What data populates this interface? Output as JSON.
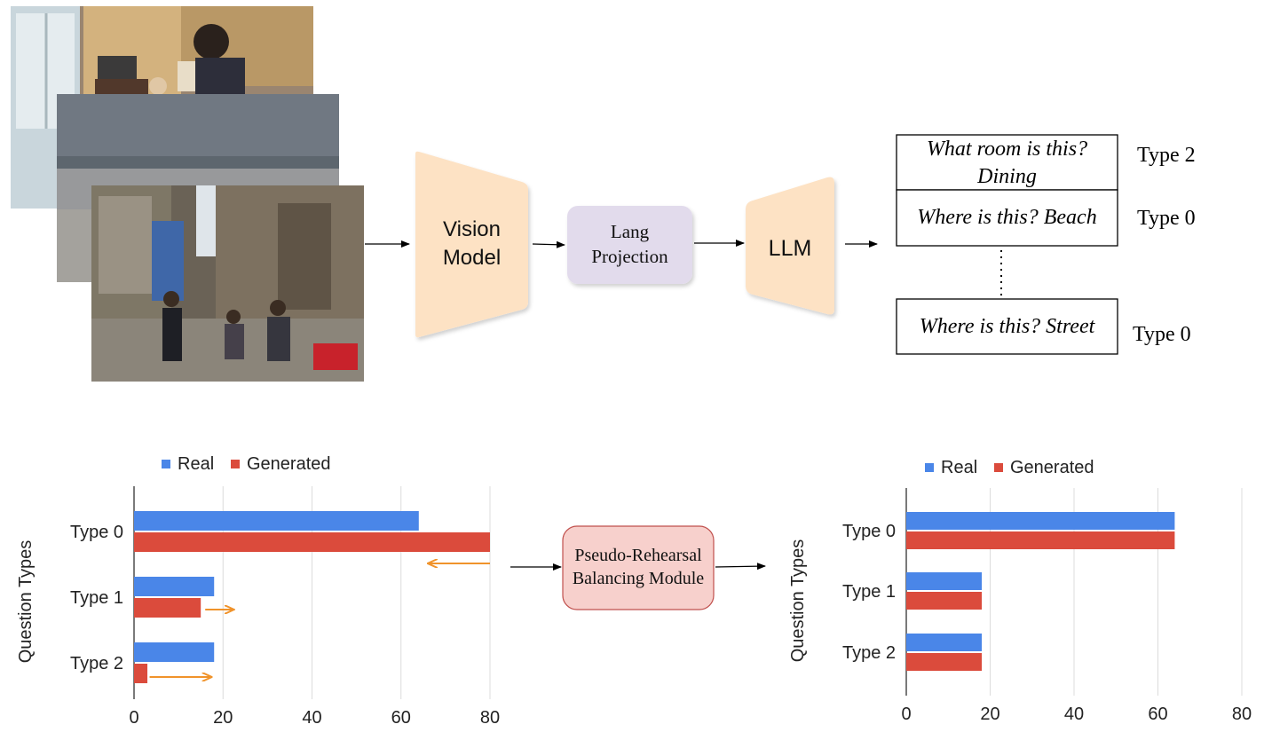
{
  "pipeline": {
    "vision_model": [
      "Vision",
      "Model"
    ],
    "lang_projection": [
      "Lang",
      "Projection"
    ],
    "llm": "LLM",
    "colors": {
      "orange_block": "#fde2c4",
      "lavender_block": "#e2dbec",
      "pink_block": "#f7d0cc"
    }
  },
  "qa_outputs": [
    {
      "question": "What room is this?",
      "answer": "Dining",
      "type": "Type 2"
    },
    {
      "question": "Where is this?",
      "answer": "Beach",
      "type": "Type 0"
    },
    {
      "question": "Where is this?",
      "answer": "Street",
      "type": "Type 0"
    }
  ],
  "balancer": [
    "Pseudo-Rehearsal",
    "Balancing Module"
  ],
  "chart_data": [
    {
      "type": "bar",
      "orientation": "horizontal",
      "categories": [
        "Type 0",
        "Type 1",
        "Type 2"
      ],
      "series": [
        {
          "name": "Real",
          "values": [
            64,
            18,
            18
          ]
        },
        {
          "name": "Generated",
          "values": [
            80,
            15,
            3
          ]
        }
      ],
      "ylabel": "Question Types",
      "xlim": [
        0,
        80
      ],
      "xticks": [
        0,
        20,
        40,
        60,
        80
      ],
      "grid": true,
      "legend": "top",
      "colors": {
        "Real": "#4a86e8",
        "Generated": "#db4b3c",
        "arrow": "#f0932b"
      }
    },
    {
      "type": "bar",
      "orientation": "horizontal",
      "categories": [
        "Type 0",
        "Type 1",
        "Type 2"
      ],
      "series": [
        {
          "name": "Real",
          "values": [
            64,
            18,
            18
          ]
        },
        {
          "name": "Generated",
          "values": [
            64,
            18,
            18
          ]
        }
      ],
      "ylabel": "Question Types",
      "xlim": [
        0,
        80
      ],
      "xticks": [
        0,
        20,
        40,
        60,
        80
      ],
      "grid": true,
      "legend": "top",
      "colors": {
        "Real": "#4a86e8",
        "Generated": "#db4b3c"
      }
    }
  ]
}
